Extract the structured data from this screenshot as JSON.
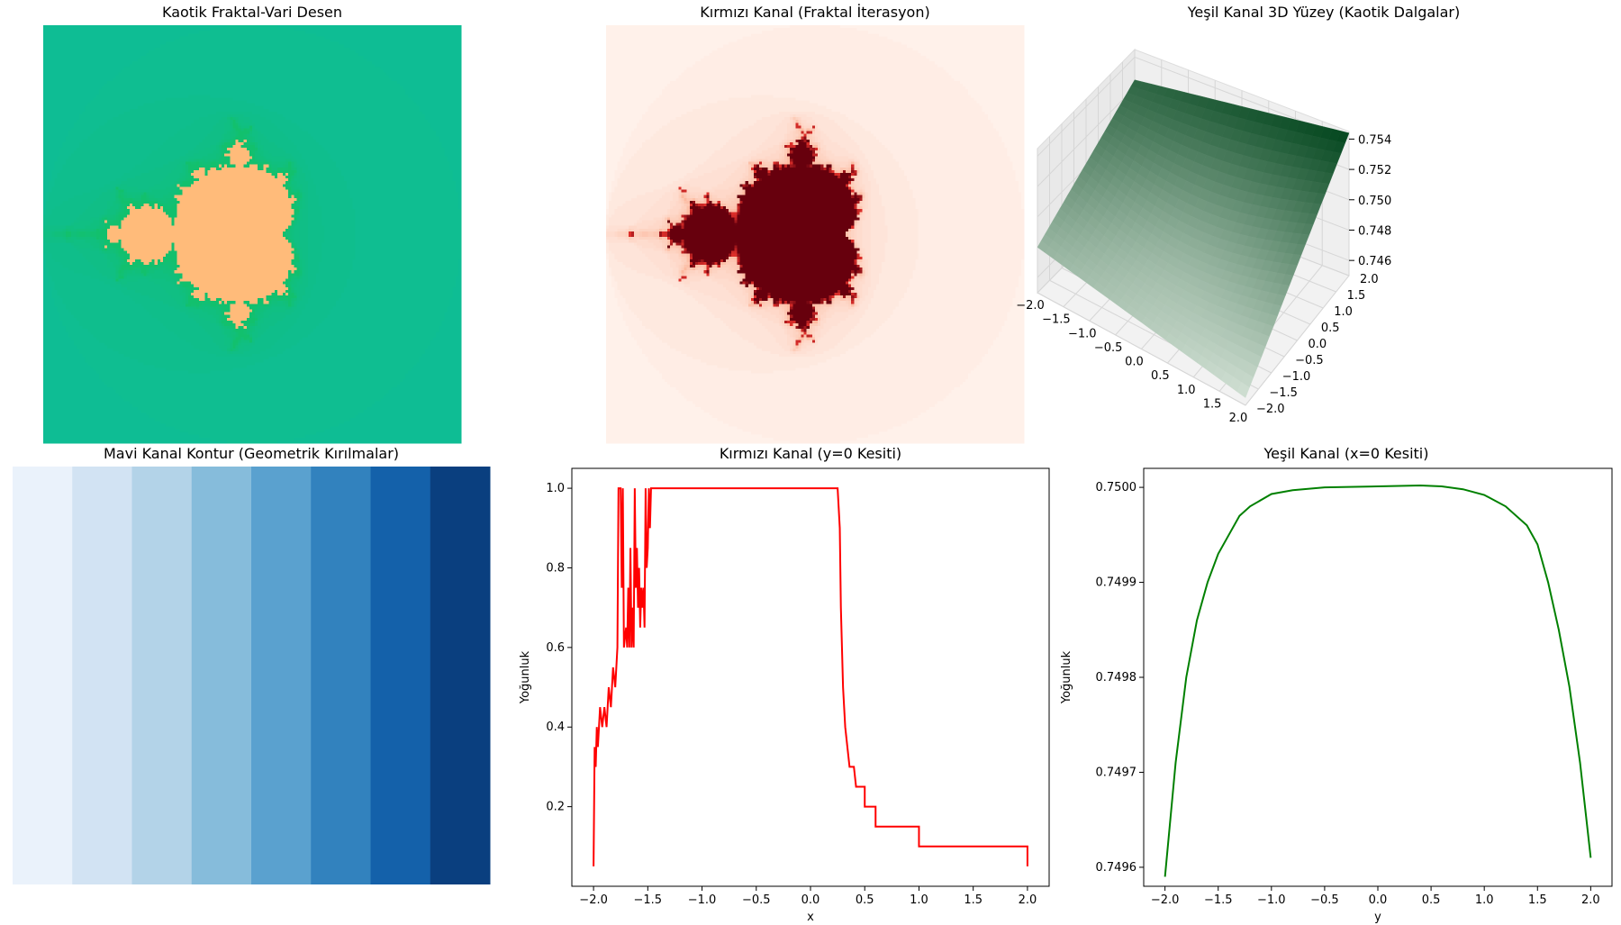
{
  "chart_data": [
    {
      "type": "heatmap",
      "title": "Kaotik Fraktal-Vari Desen",
      "xlabel": "",
      "ylabel": "",
      "xlim": [
        -2.0,
        2.0
      ],
      "ylim": [
        -2.0,
        2.0
      ],
      "colormap": "green-to-teal background with peach Mandelbrot set interior",
      "colors": {
        "outer": "#0ebd98",
        "inner": "#12c06d",
        "set": "#ffbb7a"
      }
    },
    {
      "type": "heatmap",
      "title": "Kırmızı Kanal (Fraktal İterasyon)",
      "xlabel": "",
      "ylabel": "",
      "xlim": [
        -2.0,
        2.0
      ],
      "ylim": [
        -2.0,
        2.0
      ],
      "colormap": "Reds",
      "colors": {
        "outer": "#fff5f0",
        "set": "#67000d",
        "edge": "#e2312b"
      }
    },
    {
      "type": "surface",
      "title": "Yeşil Kanal 3D Yüzey (Kaotik Dalgalar)",
      "x_ticks": [
        "−2.0",
        "−1.5",
        "−1.0",
        "−0.5",
        "0.0",
        "0.5",
        "1.0",
        "1.5",
        "2.0"
      ],
      "y_ticks": [
        "−2.0",
        "−1.5",
        "−1.0",
        "−0.5",
        "0.0",
        "0.5",
        "1.0",
        "1.5",
        "2.0"
      ],
      "z_ticks": [
        "0.746",
        "0.748",
        "0.750",
        "0.752",
        "0.754"
      ],
      "zlim": [
        0.745,
        0.7545
      ],
      "corner_values": {
        "x-2_y2": 0.7525,
        "x2_y-2": 0.7455,
        "x-2_y-2": 0.748,
        "x2_y2": 0.7544
      },
      "colormap": "Greens"
    },
    {
      "type": "heatmap",
      "title": "Mavi Kanal Kontur (Geometrik Kırılmalar)",
      "xlabel": "",
      "ylabel": "",
      "bands": 8,
      "colors": [
        "#eaf2fb",
        "#d2e3f3",
        "#b3d3e8",
        "#86bcdb",
        "#5aa1cf",
        "#3282be",
        "#1461aa",
        "#0a3f7f"
      ]
    },
    {
      "type": "line",
      "title": "Kırmızı Kanal (y=0 Kesiti)",
      "xlabel": "x",
      "ylabel": "Yoğunluk",
      "xlim": [
        -2.2,
        2.2
      ],
      "ylim": [
        0.0,
        1.05
      ],
      "x_ticks": [
        "−2.0",
        "−1.5",
        "−1.0",
        "−0.5",
        "0.0",
        "0.5",
        "1.0",
        "1.5",
        "2.0"
      ],
      "y_ticks": [
        "0.2",
        "0.4",
        "0.6",
        "0.8",
        "1.0"
      ],
      "series": [
        {
          "color": "#ff0000",
          "points": [
            [
              -2.0,
              0.05
            ],
            [
              -1.99,
              0.35
            ],
            [
              -1.98,
              0.3
            ],
            [
              -1.97,
              0.4
            ],
            [
              -1.96,
              0.35
            ],
            [
              -1.94,
              0.45
            ],
            [
              -1.92,
              0.4
            ],
            [
              -1.9,
              0.45
            ],
            [
              -1.88,
              0.4
            ],
            [
              -1.86,
              0.5
            ],
            [
              -1.84,
              0.45
            ],
            [
              -1.82,
              0.55
            ],
            [
              -1.8,
              0.5
            ],
            [
              -1.79,
              0.55
            ],
            [
              -1.78,
              0.6
            ],
            [
              -1.77,
              1.0
            ],
            [
              -1.75,
              1.0
            ],
            [
              -1.74,
              0.75
            ],
            [
              -1.73,
              1.0
            ],
            [
              -1.72,
              0.6
            ],
            [
              -1.7,
              0.65
            ],
            [
              -1.69,
              0.6
            ],
            [
              -1.68,
              0.75
            ],
            [
              -1.67,
              0.6
            ],
            [
              -1.66,
              0.85
            ],
            [
              -1.65,
              0.6
            ],
            [
              -1.64,
              0.7
            ],
            [
              -1.63,
              0.6
            ],
            [
              -1.62,
              1.0
            ],
            [
              -1.61,
              0.75
            ],
            [
              -1.6,
              0.85
            ],
            [
              -1.59,
              0.7
            ],
            [
              -1.58,
              0.8
            ],
            [
              -1.57,
              0.65
            ],
            [
              -1.56,
              0.75
            ],
            [
              -1.55,
              0.7
            ],
            [
              -1.54,
              0.75
            ],
            [
              -1.53,
              0.65
            ],
            [
              -1.52,
              1.0
            ],
            [
              -1.51,
              0.8
            ],
            [
              -1.5,
              0.85
            ],
            [
              -1.49,
              1.0
            ],
            [
              -1.48,
              0.9
            ],
            [
              -1.47,
              1.0
            ],
            [
              0.25,
              1.0
            ],
            [
              0.26,
              0.95
            ],
            [
              0.27,
              0.9
            ],
            [
              0.28,
              0.7
            ],
            [
              0.3,
              0.5
            ],
            [
              0.31,
              0.45
            ],
            [
              0.32,
              0.4
            ],
            [
              0.34,
              0.35
            ],
            [
              0.36,
              0.3
            ],
            [
              0.4,
              0.3
            ],
            [
              0.42,
              0.25
            ],
            [
              0.5,
              0.25
            ],
            [
              0.5,
              0.2
            ],
            [
              0.6,
              0.2
            ],
            [
              0.6,
              0.15
            ],
            [
              0.75,
              0.15
            ],
            [
              0.75,
              0.15
            ],
            [
              1.0,
              0.15
            ],
            [
              1.0,
              0.1
            ],
            [
              2.0,
              0.1
            ],
            [
              2.0,
              0.05
            ]
          ]
        }
      ]
    },
    {
      "type": "line",
      "title": "Yeşil Kanal (x=0 Kesiti)",
      "xlabel": "y",
      "ylabel": "Yoğunluk",
      "xlim": [
        -2.2,
        2.2
      ],
      "ylim": [
        0.74958,
        0.75002
      ],
      "x_ticks": [
        "−2.0",
        "−1.5",
        "−1.0",
        "−0.5",
        "0.0",
        "0.5",
        "1.0",
        "1.5",
        "2.0"
      ],
      "y_ticks": [
        "0.7496",
        "0.7497",
        "0.7498",
        "0.7499",
        "0.7500"
      ],
      "series": [
        {
          "color": "#008000",
          "points": [
            [
              -2.0,
              0.74959
            ],
            [
              -1.9,
              0.74971
            ],
            [
              -1.8,
              0.7498
            ],
            [
              -1.7,
              0.74986
            ],
            [
              -1.6,
              0.7499
            ],
            [
              -1.5,
              0.74993
            ],
            [
              -1.4,
              0.74995
            ],
            [
              -1.3,
              0.74997
            ],
            [
              -1.2,
              0.74998
            ],
            [
              -1.0,
              0.749993
            ],
            [
              -0.8,
              0.749997
            ],
            [
              -0.5,
              0.75
            ],
            [
              0.0,
              0.750001
            ],
            [
              0.4,
              0.750002
            ],
            [
              0.6,
              0.750001
            ],
            [
              0.8,
              0.749998
            ],
            [
              1.0,
              0.749992
            ],
            [
              1.2,
              0.74998
            ],
            [
              1.4,
              0.74996
            ],
            [
              1.5,
              0.74994
            ],
            [
              1.6,
              0.7499
            ],
            [
              1.7,
              0.74985
            ],
            [
              1.8,
              0.74979
            ],
            [
              1.9,
              0.74971
            ],
            [
              2.0,
              0.74961
            ]
          ]
        }
      ]
    }
  ]
}
